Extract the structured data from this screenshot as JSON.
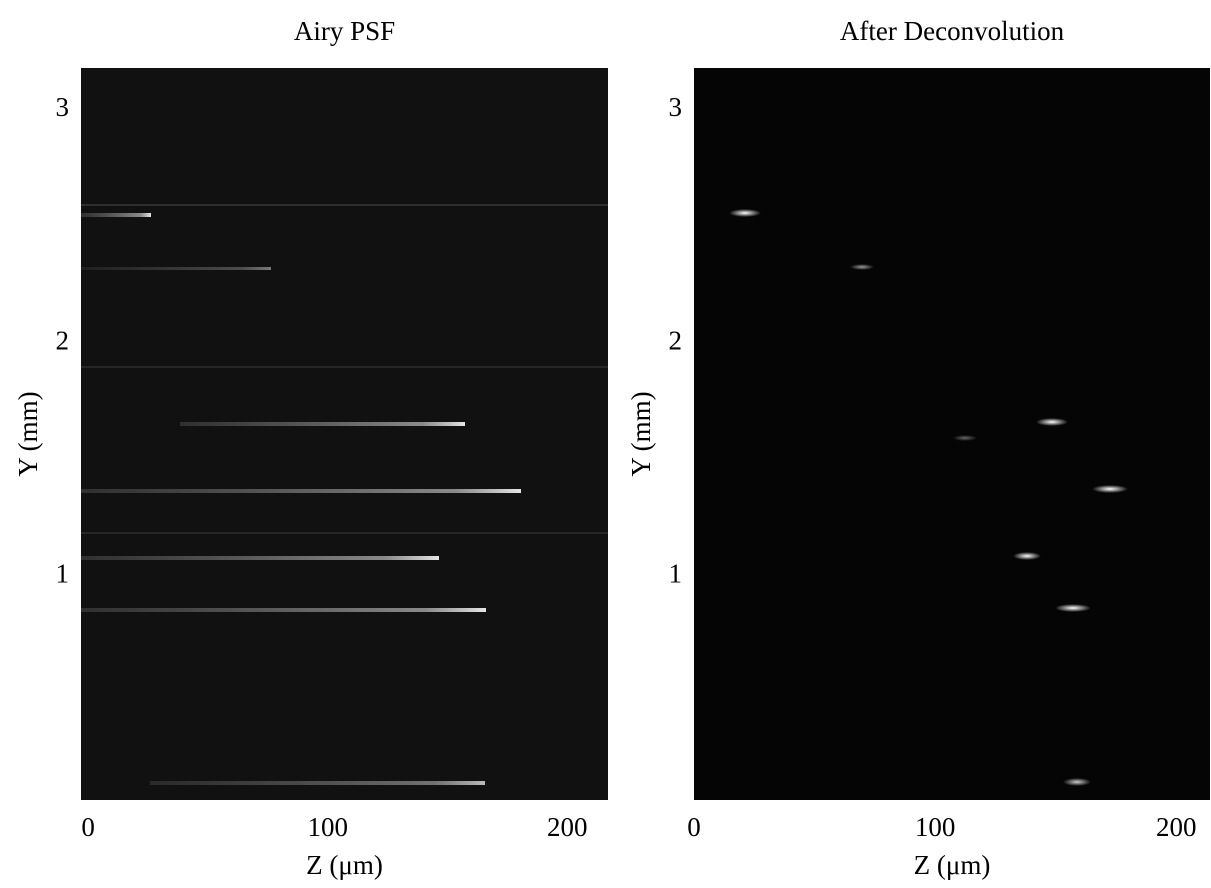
{
  "chart_data": [
    {
      "type": "image",
      "title": "Airy PSF",
      "xlabel": "Z (μm)",
      "ylabel": "Y (mm)",
      "xlim": [
        -3,
        217
      ],
      "ylim": [
        0.04,
        3.18
      ],
      "xticks": [
        0,
        100,
        200
      ],
      "yticks": [
        1,
        2,
        3
      ],
      "color": "#111111"
    },
    {
      "type": "image",
      "title": "After Deconvolution",
      "xlabel": "Z (μm)",
      "ylabel": "Y (mm)",
      "xlim": [
        0,
        214
      ],
      "ylim": [
        0.04,
        3.18
      ],
      "xticks": [
        0,
        100,
        200
      ],
      "yticks": [
        1,
        2,
        3
      ],
      "color": "#050505"
    }
  ]
}
